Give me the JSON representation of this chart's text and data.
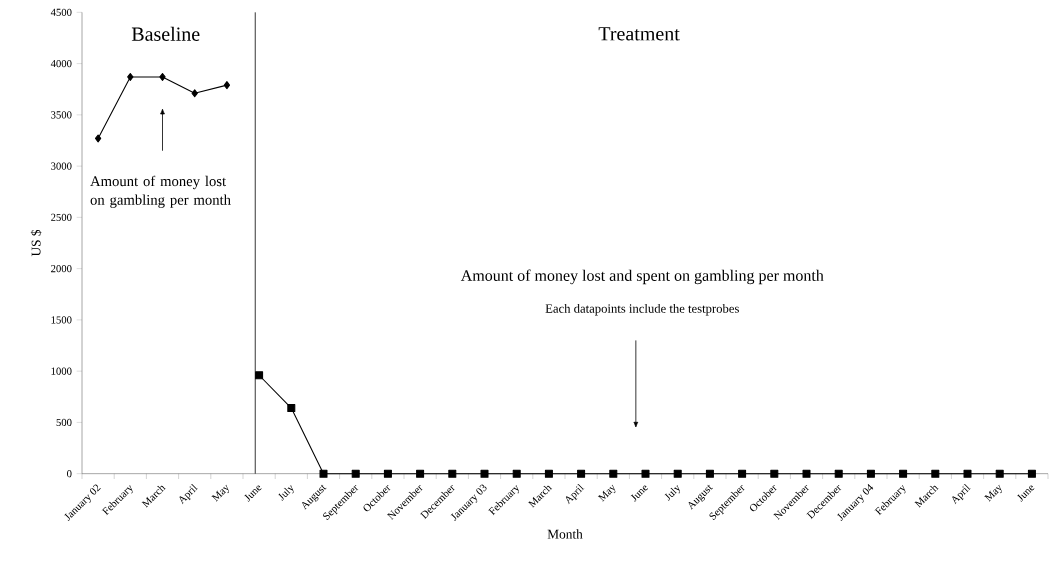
{
  "chart_data": {
    "type": "line",
    "categories": [
      "January 02",
      "February",
      "March",
      "April",
      "May",
      "June",
      "July",
      "August",
      "September",
      "October",
      "November",
      "December",
      "January 03",
      "February",
      "March",
      "April",
      "May",
      "June",
      "July",
      "August",
      "September",
      "October",
      "November",
      "December",
      "January 04",
      "February",
      "March",
      "April",
      "May",
      "June"
    ],
    "series": [
      {
        "color": "#000000",
        "marker": "diamond",
        "values": [
          3270,
          3870,
          3870,
          3710,
          3790,
          null,
          null,
          null,
          null,
          null,
          null,
          null,
          null,
          null,
          null,
          null,
          null,
          null,
          null,
          null,
          null,
          null,
          null,
          null,
          null,
          null,
          null,
          null,
          null,
          null
        ]
      },
      {
        "color": "#000000",
        "marker": "square",
        "values": [
          null,
          null,
          null,
          null,
          null,
          960,
          640,
          0,
          0,
          0,
          0,
          0,
          0,
          0,
          0,
          0,
          0,
          0,
          0,
          0,
          0,
          0,
          0,
          0,
          0,
          0,
          0,
          0,
          0,
          0
        ]
      }
    ],
    "xlabel": "Month",
    "ylabel": "US $",
    "annotations": [
      "Baseline",
      "Treatment",
      "Amount of money lost on gambling per month",
      "Amount of money lost and spent on gambling per month",
      "Each datapoints include the testprobes"
    ],
    "ylim": [
      0,
      4500
    ],
    "yticks": [
      0,
      500,
      1000,
      1500,
      2000,
      2500,
      3000,
      3500,
      4000,
      4500
    ]
  }
}
